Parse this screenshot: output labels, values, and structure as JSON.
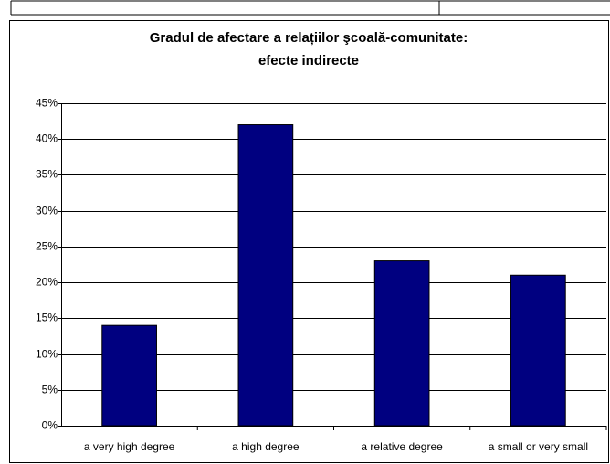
{
  "chart_data": {
    "type": "bar",
    "title": [
      "Gradul de afectare a relațiilor şcoală-comunitate:",
      "efecte indirecte"
    ],
    "categories": [
      "a very high degree",
      "a high degree",
      "a relative degree",
      "a small or very small"
    ],
    "values": [
      14,
      42,
      23,
      21
    ],
    "color": "#000080",
    "ylim": [
      0,
      45
    ],
    "yticks": [
      {
        "value": 0,
        "label": "0%"
      },
      {
        "value": 5,
        "label": "5%"
      },
      {
        "value": 10,
        "label": "10%"
      },
      {
        "value": 15,
        "label": "15%"
      },
      {
        "value": 20,
        "label": "20%"
      },
      {
        "value": 25,
        "label": "25%"
      },
      {
        "value": 30,
        "label": "30%"
      },
      {
        "value": 35,
        "label": "35%"
      },
      {
        "value": 40,
        "label": "40%"
      },
      {
        "value": 45,
        "label": "45%"
      }
    ],
    "grid": true
  }
}
